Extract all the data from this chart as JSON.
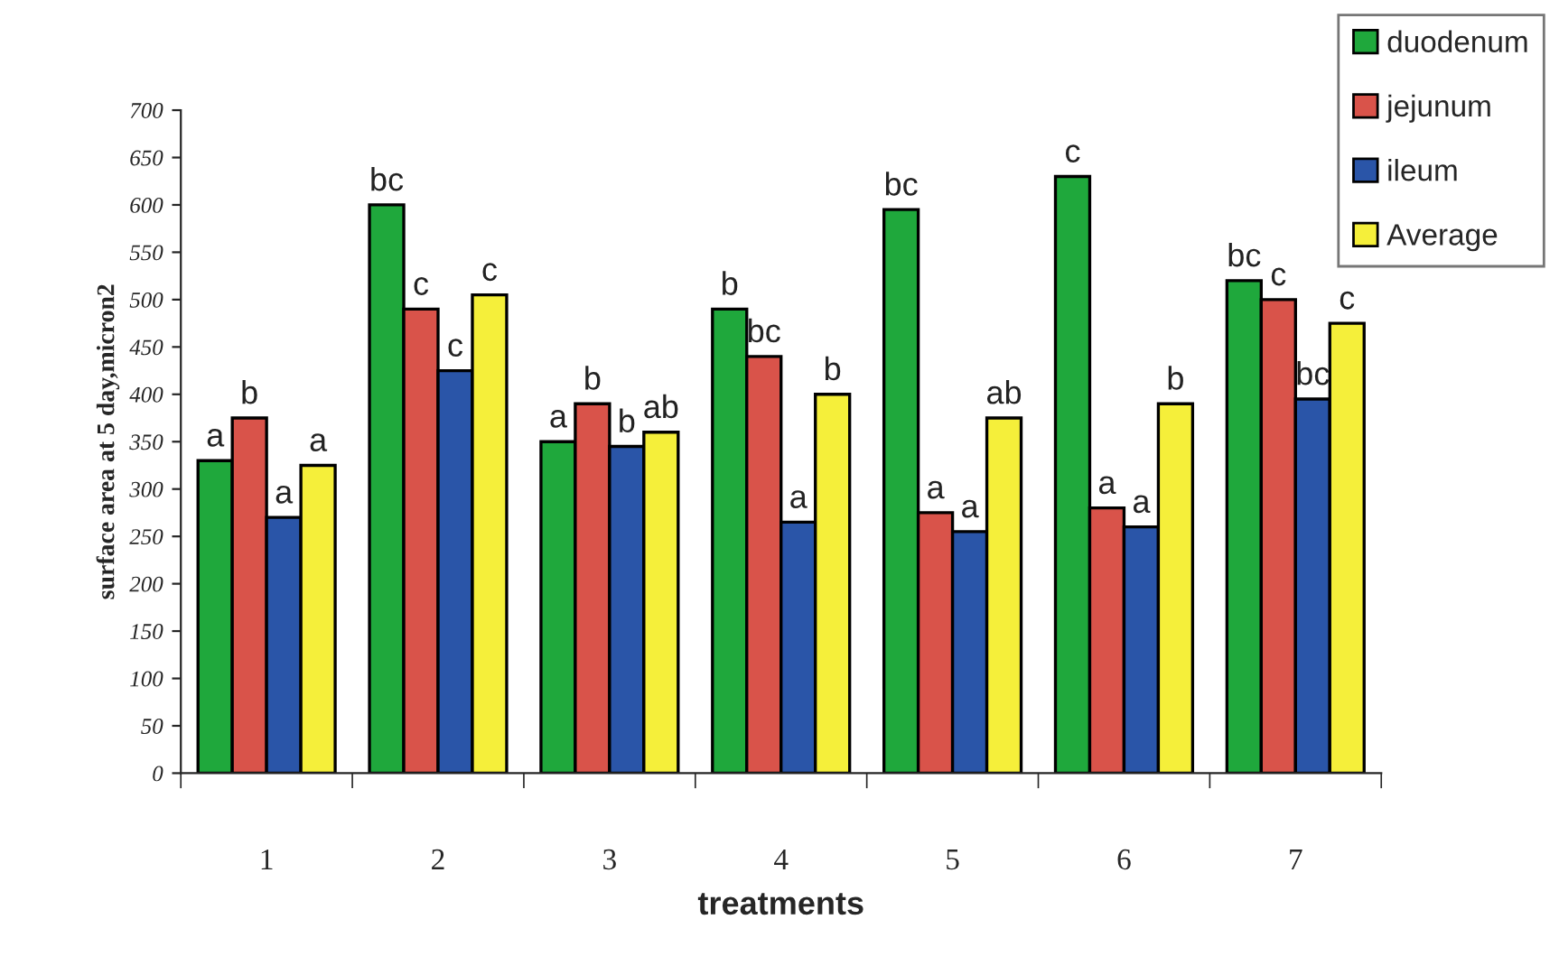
{
  "chart_data": {
    "type": "bar",
    "xlabel": "treatments",
    "ylabel": "surface area at 5 day,micron2",
    "categories": [
      "1",
      "2",
      "3",
      "4",
      "5",
      "6",
      "7"
    ],
    "series": [
      {
        "name": "duodenum",
        "color": "#1fa83c",
        "values": [
          330,
          600,
          350,
          490,
          595,
          630,
          520
        ],
        "value_labels": [
          "a",
          "bc",
          "a",
          "b",
          "bc",
          "c",
          "bc"
        ]
      },
      {
        "name": "jejunum",
        "color": "#d9534a",
        "values": [
          375,
          490,
          390,
          440,
          275,
          280,
          500
        ],
        "value_labels": [
          "b",
          "c",
          "b",
          "bc",
          "a",
          "a",
          "c"
        ]
      },
      {
        "name": "ileum",
        "color": "#2a55a8",
        "values": [
          270,
          425,
          345,
          265,
          255,
          260,
          395
        ],
        "value_labels": [
          "a",
          "c",
          "b",
          "a",
          "a",
          "a",
          "bc"
        ]
      },
      {
        "name": "Average",
        "color": "#f5ef3a",
        "values": [
          325,
          505,
          360,
          400,
          375,
          390,
          475
        ],
        "value_labels": [
          "a",
          "c",
          "ab",
          "b",
          "ab",
          "b",
          "c"
        ]
      }
    ],
    "ylim": [
      0,
      700
    ],
    "yticks": [
      0,
      50,
      100,
      150,
      200,
      250,
      300,
      350,
      400,
      450,
      500,
      550,
      600,
      650,
      700
    ],
    "grid": false,
    "legend": "top right"
  }
}
